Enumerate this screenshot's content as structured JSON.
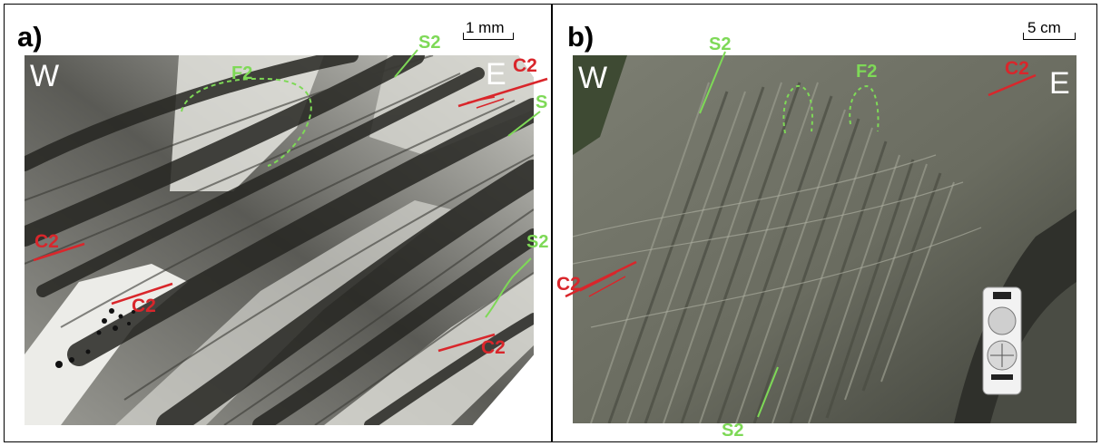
{
  "panels": [
    {
      "label": "a)",
      "scale": "1 mm",
      "west": "W",
      "east": "E",
      "annotations": {
        "s2_top": "S2",
        "f2": "F2",
        "c2_top": "C2",
        "s": "S",
        "s2_right": "S2",
        "c2_left": "C2",
        "c2_center": "C2",
        "c2_bottom": "C2"
      }
    },
    {
      "label": "b)",
      "scale": "5 cm",
      "west": "W",
      "east": "E",
      "annotations": {
        "s2_top": "S2",
        "f2": "F2",
        "c2_top": "C2",
        "c2_left": "C2",
        "s2_bottom": "S2"
      }
    }
  ],
  "colors": {
    "green_annotation": "#7ed957",
    "red_annotation": "#d9262b",
    "thin_section_light": "#e6e6e2",
    "thin_section_dark": "#2c2c28",
    "outcrop_grey": "#6e7064",
    "compass_body": "#f2f2f2"
  }
}
